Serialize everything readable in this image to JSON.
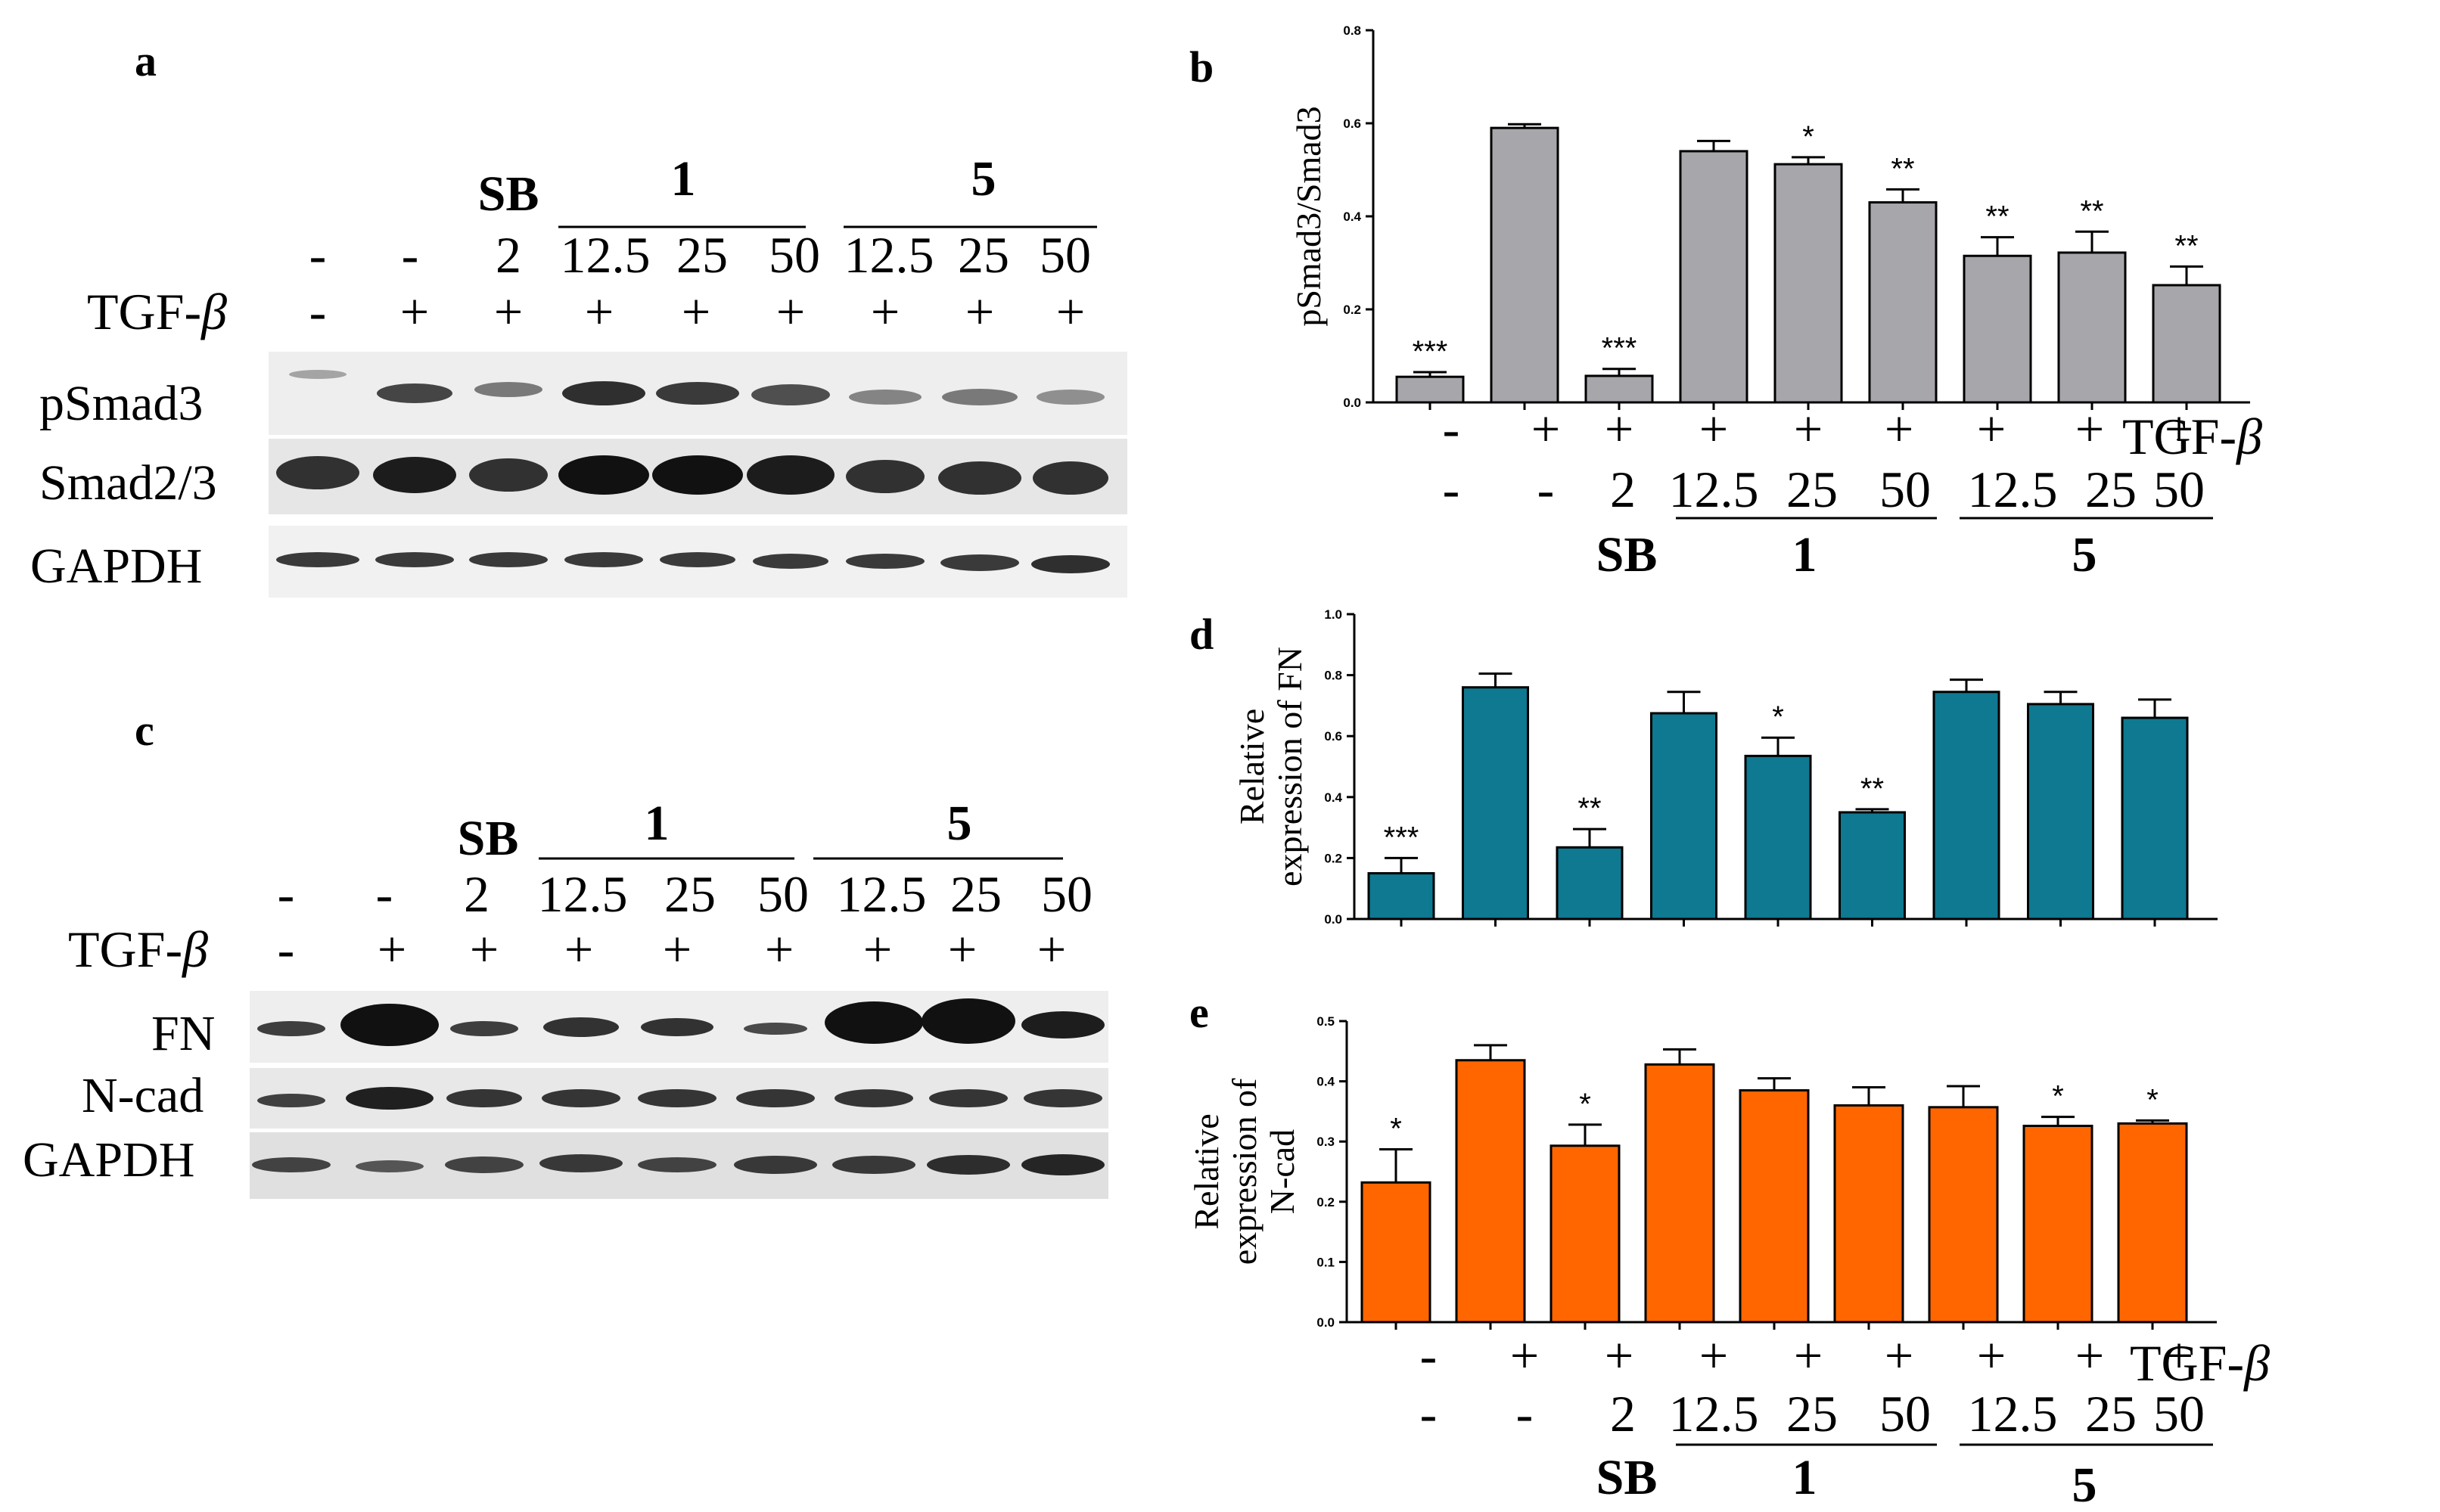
{
  "panels": {
    "a": "a",
    "b": "b",
    "c": "c",
    "d": "d",
    "e": "e"
  },
  "treatments": {
    "tgf_label": "TGF-β",
    "tgf_row": [
      "-",
      "+",
      "+",
      "+",
      "+",
      "+",
      "+",
      "+",
      "+"
    ],
    "dose_row": [
      "-",
      "-",
      "2",
      "12.5",
      "25",
      "50",
      "12.5",
      "25",
      "50"
    ],
    "groups": [
      "SB",
      "1",
      "5"
    ]
  },
  "blots": {
    "top_rows": [
      "pSmad3",
      "Smad2/3",
      "GAPDH"
    ],
    "bottom_rows": [
      "FN",
      "N-cad",
      "GAPDH"
    ]
  },
  "chart_data": [
    {
      "panel": "b",
      "type": "bar",
      "ylabel": "pSmad3/Smad3",
      "ylim": [
        0,
        0.8
      ],
      "yticks": [
        "0.0",
        "0.2",
        "0.4",
        "0.6",
        "0.8"
      ],
      "color": "#a7a6ab",
      "categories": [
        "- / -",
        "+ / -",
        "+ / SB 2",
        "+ / 1 12.5",
        "+ / 1 25",
        "+ / 1 50",
        "+ / 5 12.5",
        "+ / 5 25",
        "+ / 5 50"
      ],
      "values": [
        0.055,
        0.59,
        0.057,
        0.54,
        0.512,
        0.43,
        0.315,
        0.322,
        0.252
      ],
      "errors": [
        0.01,
        0.008,
        0.015,
        0.022,
        0.015,
        0.028,
        0.04,
        0.045,
        0.04
      ],
      "stars": [
        "***",
        "",
        "***",
        "",
        "*",
        "**",
        "**",
        "**",
        "**"
      ]
    },
    {
      "panel": "d",
      "type": "bar",
      "ylabel": "Relative expression of FN",
      "ylabel_lines": [
        "Relative",
        "expression of FN"
      ],
      "ylim": [
        0,
        1.0
      ],
      "yticks": [
        "0.0",
        "0.2",
        "0.4",
        "0.6",
        "0.8",
        "1.0"
      ],
      "color": "#0e7990",
      "categories": [
        "- / -",
        "+ / -",
        "+ / SB 2",
        "+ / 1 12.5",
        "+ / 1 25",
        "+ / 1 50",
        "+ / 5 12.5",
        "+ / 5 25",
        "+ / 5 50"
      ],
      "values": [
        0.15,
        0.76,
        0.235,
        0.675,
        0.535,
        0.35,
        0.745,
        0.705,
        0.66
      ],
      "errors": [
        0.05,
        0.045,
        0.06,
        0.07,
        0.06,
        0.01,
        0.04,
        0.04,
        0.06
      ],
      "stars": [
        "***",
        "",
        "**",
        "",
        "*",
        "**",
        "",
        "",
        ""
      ]
    },
    {
      "panel": "e",
      "type": "bar",
      "ylabel": "Relative expression of N-cad",
      "ylabel_lines": [
        "Relative",
        "expression of",
        "N-cad"
      ],
      "ylim": [
        0,
        0.5
      ],
      "yticks": [
        "0.0",
        "0.1",
        "0.2",
        "0.3",
        "0.4",
        "0.5"
      ],
      "color": "#ff6600",
      "categories": [
        "- / -",
        "+ / -",
        "+ / SB 2",
        "+ / 1 12.5",
        "+ / 1 25",
        "+ / 1 50",
        "+ / 5 12.5",
        "+ / 5 25",
        "+ / 5 50"
      ],
      "values": [
        0.232,
        0.435,
        0.293,
        0.428,
        0.385,
        0.36,
        0.357,
        0.326,
        0.33
      ],
      "errors": [
        0.055,
        0.025,
        0.035,
        0.025,
        0.02,
        0.03,
        0.035,
        0.015,
        0.005
      ],
      "stars": [
        "*",
        "",
        "*",
        "",
        "",
        "",
        "",
        "*",
        "*"
      ]
    }
  ]
}
